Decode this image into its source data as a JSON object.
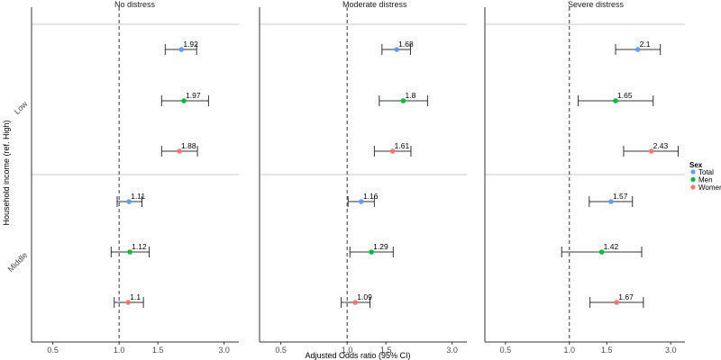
{
  "chart_data": {
    "type": "forest",
    "xlabel": "Adjusted Odds ratio (95% CI)",
    "ylabel": "Household income (ref. High)",
    "x_scale": "log",
    "xlim": [
      0.4,
      3.5
    ],
    "x_ticks": [
      0.5,
      1.0,
      1.5,
      3.0
    ],
    "x_tick_labels": [
      "0.5",
      "1.0",
      "1.5",
      "3.0"
    ],
    "reference_line": 1.0,
    "panels": [
      "No distress",
      "Moderate distress",
      "Severe distress"
    ],
    "groups": [
      "Low",
      "Middle"
    ],
    "legend": {
      "title": "Sex",
      "position": "right",
      "items": [
        {
          "name": "Total",
          "color": "#619CFF"
        },
        {
          "name": "Men",
          "color": "#00BA38"
        },
        {
          "name": "Women",
          "color": "#F8766D"
        }
      ]
    },
    "series_order": [
      "Total",
      "Men",
      "Women"
    ],
    "points": [
      {
        "panel": "No distress",
        "group": "Low",
        "series": "Total",
        "or": 1.92,
        "lo": 1.62,
        "hi": 2.25,
        "label": "1.92"
      },
      {
        "panel": "No distress",
        "group": "Low",
        "series": "Men",
        "or": 1.97,
        "lo": 1.56,
        "hi": 2.55,
        "label": "1.97"
      },
      {
        "panel": "No distress",
        "group": "Low",
        "series": "Women",
        "or": 1.88,
        "lo": 1.56,
        "hi": 2.27,
        "label": "1.88"
      },
      {
        "panel": "No distress",
        "group": "Middle",
        "series": "Total",
        "or": 1.11,
        "lo": 0.98,
        "hi": 1.27,
        "label": "1.11"
      },
      {
        "panel": "No distress",
        "group": "Middle",
        "series": "Men",
        "or": 1.12,
        "lo": 0.92,
        "hi": 1.37,
        "label": "1.12"
      },
      {
        "panel": "No distress",
        "group": "Middle",
        "series": "Women",
        "or": 1.1,
        "lo": 0.95,
        "hi": 1.29,
        "label": "1.1"
      },
      {
        "panel": "Moderate distress",
        "group": "Low",
        "series": "Total",
        "or": 1.68,
        "lo": 1.44,
        "hi": 1.94,
        "label": "1.68"
      },
      {
        "panel": "Moderate distress",
        "group": "Low",
        "series": "Men",
        "or": 1.8,
        "lo": 1.4,
        "hi": 2.32,
        "label": "1.8"
      },
      {
        "panel": "Moderate distress",
        "group": "Low",
        "series": "Women",
        "or": 1.61,
        "lo": 1.33,
        "hi": 1.95,
        "label": "1.61"
      },
      {
        "panel": "Moderate distress",
        "group": "Middle",
        "series": "Total",
        "or": 1.16,
        "lo": 1.01,
        "hi": 1.33,
        "label": "1.16"
      },
      {
        "panel": "Moderate distress",
        "group": "Middle",
        "series": "Men",
        "or": 1.29,
        "lo": 1.03,
        "hi": 1.62,
        "label": "1.29"
      },
      {
        "panel": "Moderate distress",
        "group": "Middle",
        "series": "Women",
        "or": 1.09,
        "lo": 0.94,
        "hi": 1.27,
        "label": "1.09"
      },
      {
        "panel": "Severe distress",
        "group": "Low",
        "series": "Total",
        "or": 2.1,
        "lo": 1.65,
        "hi": 2.68,
        "label": "2.1"
      },
      {
        "panel": "Severe distress",
        "group": "Low",
        "series": "Men",
        "or": 1.65,
        "lo": 1.1,
        "hi": 2.48,
        "label": "1.65"
      },
      {
        "panel": "Severe distress",
        "group": "Low",
        "series": "Women",
        "or": 2.43,
        "lo": 1.8,
        "hi": 3.25,
        "label": "2.43"
      },
      {
        "panel": "Severe distress",
        "group": "Middle",
        "series": "Total",
        "or": 1.57,
        "lo": 1.24,
        "hi": 1.98,
        "label": "1.57"
      },
      {
        "panel": "Severe distress",
        "group": "Middle",
        "series": "Men",
        "or": 1.42,
        "lo": 0.92,
        "hi": 2.19,
        "label": "1.42"
      },
      {
        "panel": "Severe distress",
        "group": "Middle",
        "series": "Women",
        "or": 1.67,
        "lo": 1.25,
        "hi": 2.23,
        "label": "1.67"
      }
    ]
  }
}
